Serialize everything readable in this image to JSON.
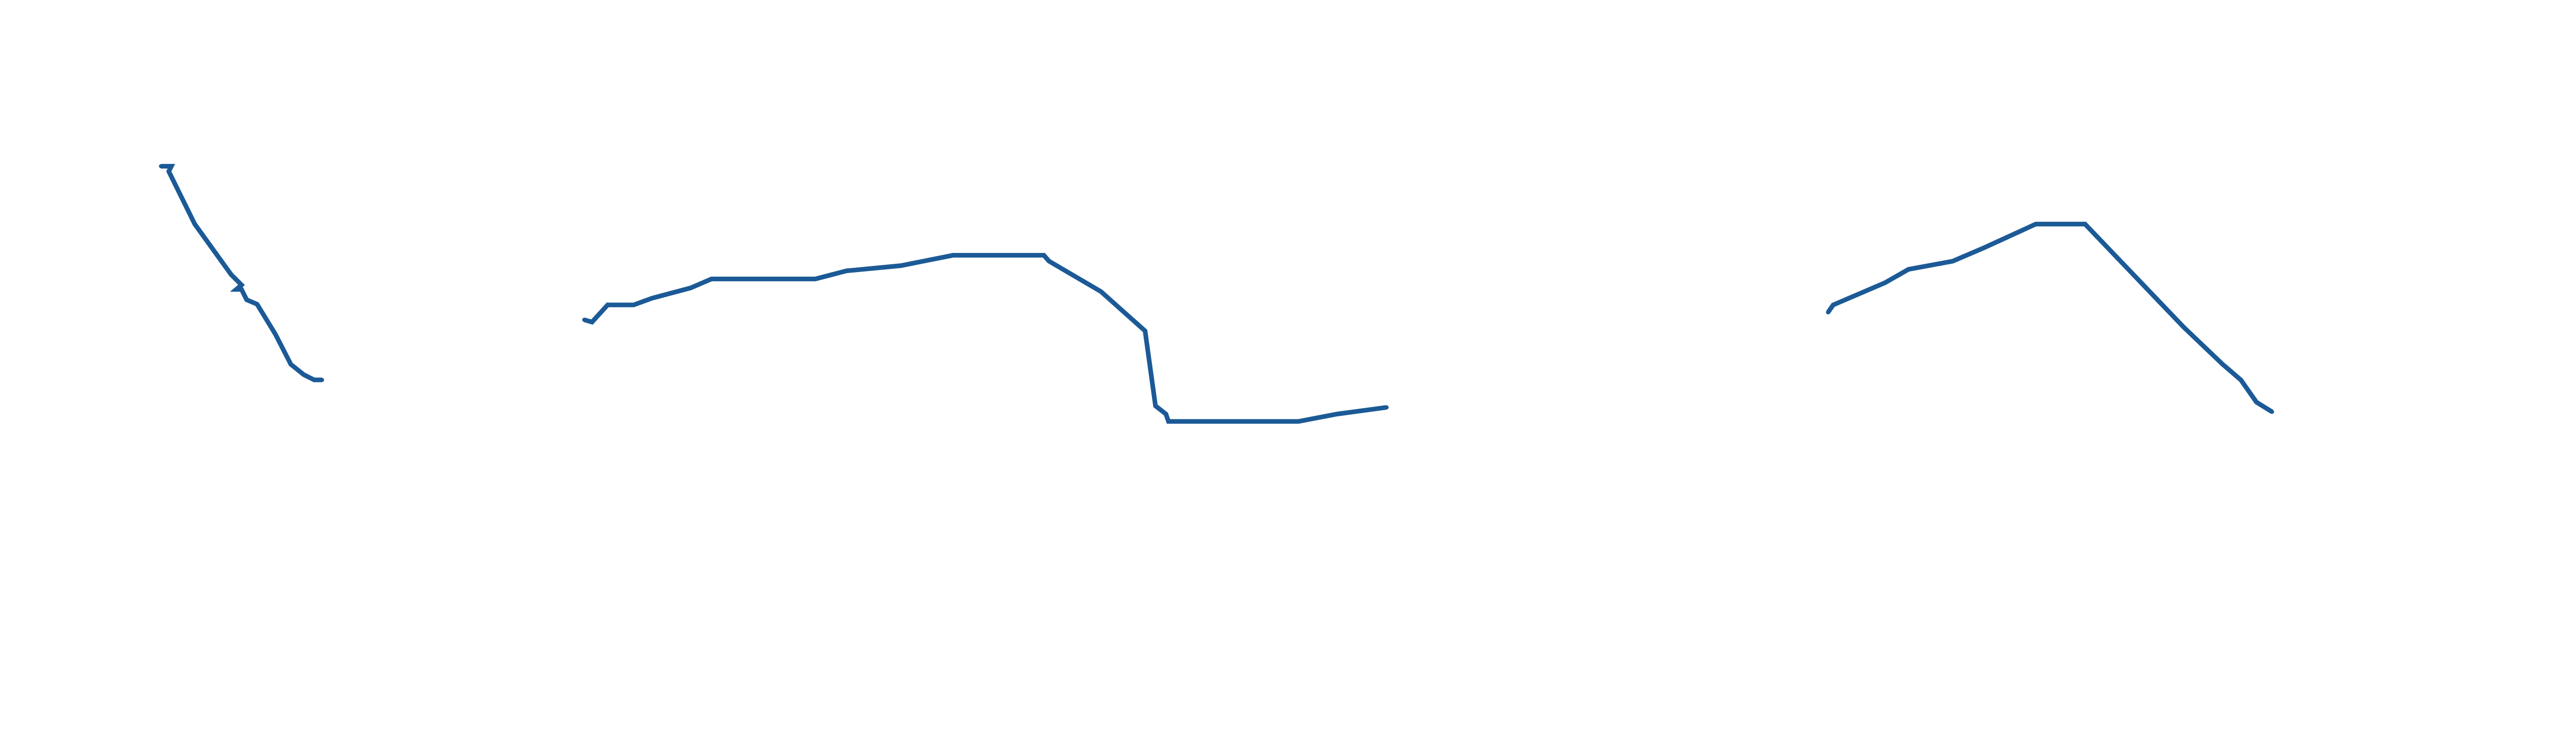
{
  "chart_data": {
    "type": "line",
    "title": "",
    "xlabel": "",
    "ylabel": "",
    "xlim": [
      0,
      100
    ],
    "ylim": [
      0,
      100
    ],
    "grid": false,
    "legend": "none",
    "series": [
      {
        "color": "#1b5a96",
        "segments": [
          [
            [
              6.2,
              77.6
            ],
            [
              6.6,
              77.6
            ],
            [
              6.5,
              76.9
            ],
            [
              7.5,
              69.8
            ],
            [
              8.9,
              63.0
            ],
            [
              9.3,
              61.6
            ],
            [
              9.1,
              61.0
            ],
            [
              9.3,
              61.0
            ],
            [
              9.5,
              59.6
            ],
            [
              9.9,
              59.0
            ],
            [
              10.6,
              55.0
            ],
            [
              11.2,
              50.9
            ],
            [
              11.7,
              49.5
            ],
            [
              12.1,
              48.8
            ],
            [
              12.4,
              48.8
            ]
          ],
          [
            [
              22.5,
              56.9
            ],
            [
              22.8,
              56.6
            ],
            [
              23.4,
              58.9
            ],
            [
              23.7,
              58.9
            ],
            [
              24.4,
              58.9
            ],
            [
              25.1,
              59.8
            ],
            [
              26.6,
              61.2
            ],
            [
              27.4,
              62.4
            ],
            [
              31.4,
              62.4
            ],
            [
              32.6,
              63.5
            ],
            [
              34.7,
              64.2
            ],
            [
              36.7,
              65.6
            ],
            [
              40.2,
              65.6
            ],
            [
              40.4,
              64.8
            ],
            [
              42.4,
              60.7
            ],
            [
              44.1,
              55.4
            ],
            [
              44.5,
              45.3
            ],
            [
              44.5,
              45.3
            ],
            [
              44.9,
              44.2
            ],
            [
              45.0,
              43.2
            ],
            [
              50.0,
              43.2
            ],
            [
              51.5,
              44.2
            ],
            [
              53.4,
              45.1
            ]
          ],
          [
            [
              70.4,
              57.9
            ],
            [
              70.6,
              58.9
            ],
            [
              72.6,
              61.9
            ],
            [
              73.5,
              63.7
            ],
            [
              75.2,
              64.8
            ],
            [
              76.4,
              66.6
            ],
            [
              78.4,
              69.8
            ],
            [
              80.3,
              69.8
            ],
            [
              84.1,
              55.9
            ],
            [
              85.6,
              50.9
            ],
            [
              86.3,
              48.8
            ],
            [
              86.9,
              45.8
            ],
            [
              87.5,
              44.5
            ]
          ]
        ]
      }
    ]
  }
}
